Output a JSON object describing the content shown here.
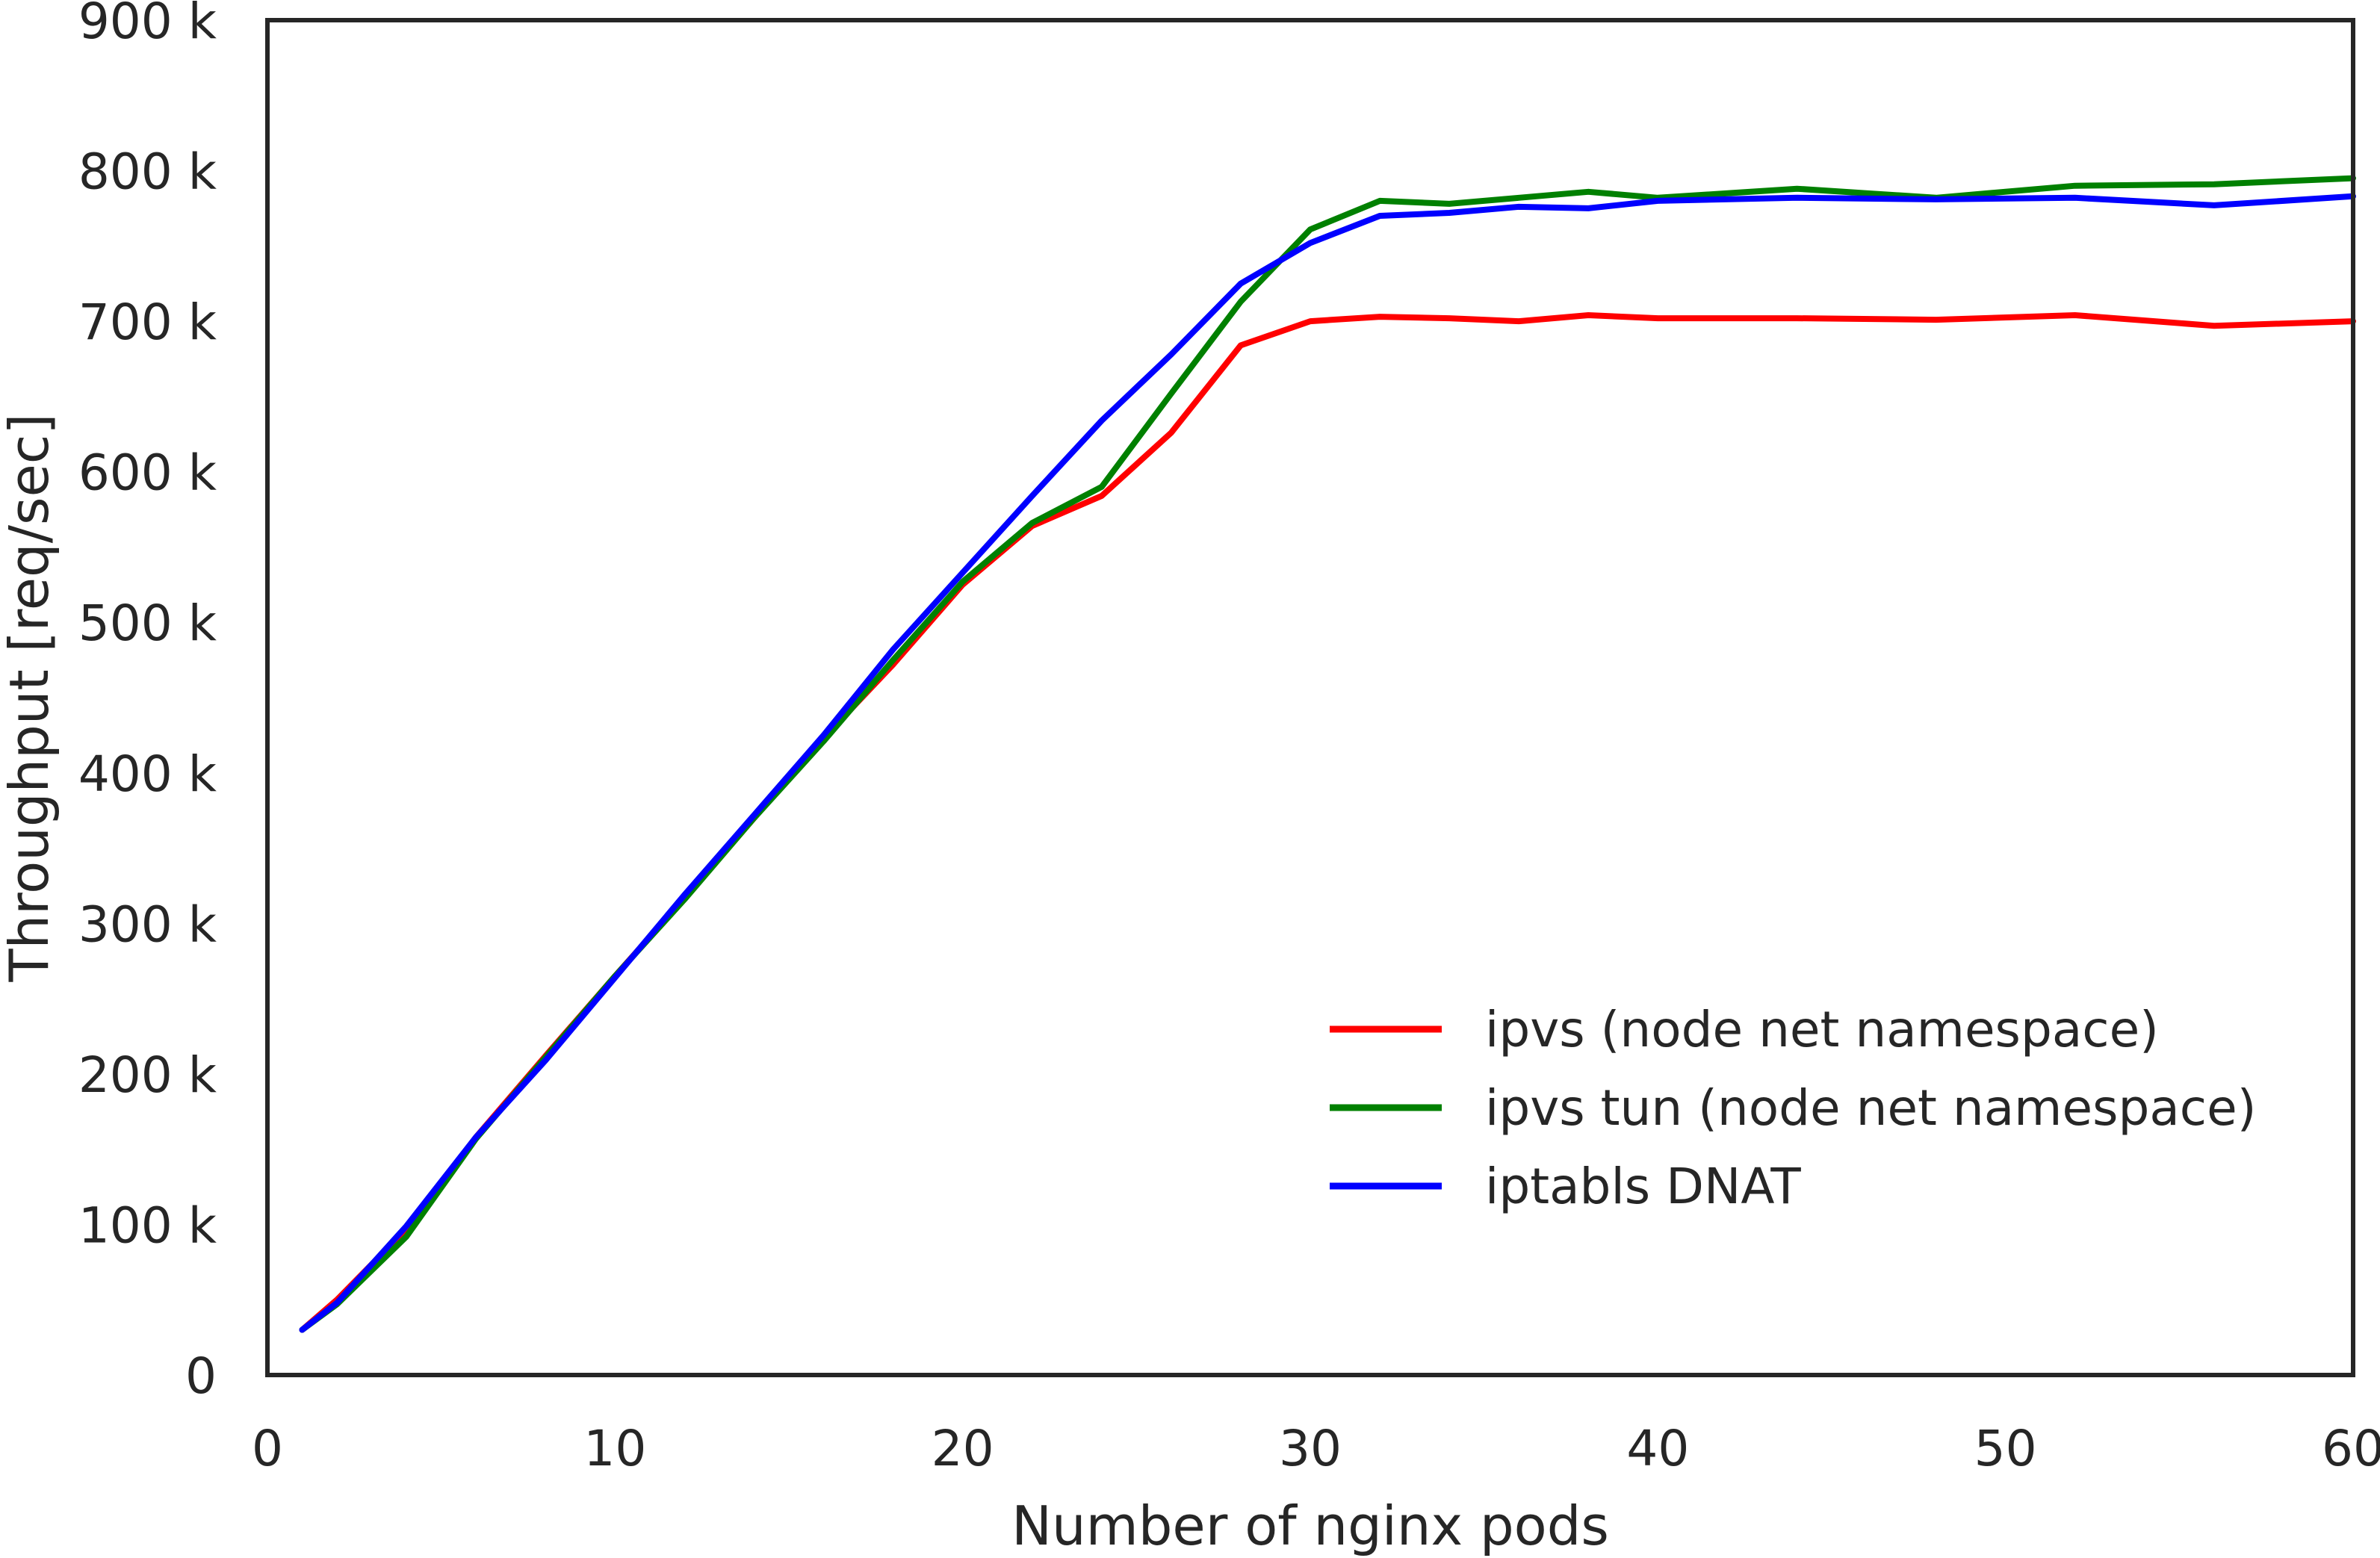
{
  "chart_data": {
    "type": "line",
    "title": "",
    "xlabel": "Number of nginx pods",
    "ylabel": "Throughput [req/sec]",
    "xlim": [
      0,
      60
    ],
    "ylim": [
      0,
      900000
    ],
    "xticks": [
      0,
      10,
      20,
      30,
      40,
      50,
      60
    ],
    "xtick_labels": [
      "0",
      "10",
      "20",
      "30",
      "40",
      "50",
      "60"
    ],
    "yticks": [
      0,
      100000,
      200000,
      300000,
      400000,
      500000,
      600000,
      700000,
      800000,
      900000
    ],
    "ytick_labels": [
      "0",
      "100 k",
      "200 k",
      "300 k",
      "400 k",
      "500 k",
      "600 k",
      "700 k",
      "800 k",
      "900 k"
    ],
    "grid": false,
    "legend_position": "lower-right",
    "series": [
      {
        "name": "ipvs (node net namespace)",
        "color": "#ff0000",
        "x": [
          1,
          2,
          4,
          6,
          8,
          10,
          12,
          14,
          16,
          18,
          20,
          22,
          24,
          26,
          28,
          30,
          32,
          34,
          36,
          38,
          40,
          44,
          48,
          52,
          56,
          60
        ],
        "y": [
          30000,
          50000,
          97000,
          158000,
          212000,
          265000,
          317000,
          370000,
          423000,
          472000,
          525000,
          564000,
          584000,
          626000,
          684000,
          700000,
          703000,
          702000,
          700000,
          704000,
          702000,
          702000,
          701000,
          704000,
          697000,
          700000
        ]
      },
      {
        "name": "ipvs tun (node net namespace)",
        "color": "#008000",
        "x": [
          1,
          2,
          4,
          6,
          8,
          10,
          12,
          14,
          16,
          18,
          20,
          22,
          24,
          26,
          28,
          30,
          32,
          34,
          36,
          38,
          40,
          44,
          48,
          52,
          56,
          60
        ],
        "y": [
          30000,
          47000,
          92000,
          157000,
          211000,
          265000,
          316000,
          370000,
          421000,
          475000,
          527000,
          566000,
          590000,
          652000,
          713000,
          761000,
          780000,
          778000,
          782000,
          786000,
          782000,
          788000,
          782000,
          790000,
          791000,
          795000
        ]
      },
      {
        "name": "iptabls DNAT",
        "color": "#0000ff",
        "x": [
          1,
          2,
          4,
          6,
          8,
          10,
          12,
          14,
          16,
          18,
          20,
          22,
          24,
          26,
          28,
          30,
          32,
          34,
          36,
          38,
          40,
          44,
          48,
          52,
          56,
          60
        ],
        "y": [
          30000,
          48000,
          99000,
          158000,
          209000,
          264000,
          319000,
          372000,
          425000,
          482000,
          533000,
          584000,
          634000,
          678000,
          725000,
          752000,
          770000,
          772000,
          776000,
          775000,
          780000,
          782000,
          781000,
          782000,
          777000,
          783000
        ]
      }
    ]
  }
}
